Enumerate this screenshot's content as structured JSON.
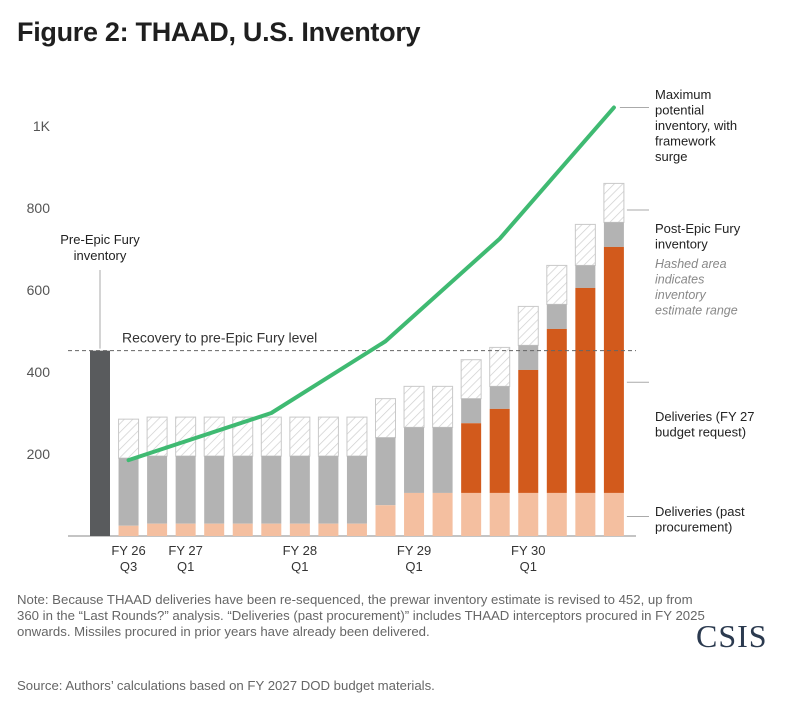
{
  "title": "Figure 2: THAAD, U.S. Inventory",
  "note": "Note: Because THAAD deliveries have been re-sequenced, the prewar inventory estimate is revised to 452, up from 360 in the “Last Rounds?” analysis. “Deliveries (past procurement)” includes THAAD interceptors procured in FY 2025 onwards. Missiles procured in prior years have already been delivered.",
  "source": "Source: Authors’ calculations based on FY 2027 DOD budget materials.",
  "logo": "CSIS",
  "colors": {
    "pre_war": "#595b5d",
    "past": "#f4bfa0",
    "fy27": "#d25a1c",
    "post": "#b3b3b3",
    "line": "#3fba72",
    "hatch_stroke": "#c9c9c9"
  },
  "chart_data": {
    "type": "bar",
    "ylim": [
      0,
      1100
    ],
    "yticks": [
      {
        "v": 200,
        "label": "200"
      },
      {
        "v": 400,
        "label": "400"
      },
      {
        "v": 600,
        "label": "600"
      },
      {
        "v": 800,
        "label": "800"
      },
      {
        "v": 1000,
        "label": "1K"
      }
    ],
    "xticks": [
      {
        "index": 1,
        "line1": "FY 26",
        "line2": "Q3"
      },
      {
        "index": 3,
        "line1": "FY 27",
        "line2": "Q1"
      },
      {
        "index": 7,
        "line1": "FY 28",
        "line2": "Q1"
      },
      {
        "index": 11,
        "line1": "FY 29",
        "line2": "Q1"
      },
      {
        "index": 15,
        "line1": "FY 30",
        "line2": "Q1"
      }
    ],
    "pre_war_inventory": 452,
    "pre_war_label": [
      "Pre-Epic Fury",
      "inventory"
    ],
    "reference_label": "Recovery to pre-Epic Fury level",
    "bars": [
      {
        "past": 25,
        "fy27": 0,
        "post": 190,
        "max": 285
      },
      {
        "past": 30,
        "fy27": 0,
        "post": 195,
        "max": 290
      },
      {
        "past": 30,
        "fy27": 0,
        "post": 195,
        "max": 290
      },
      {
        "past": 30,
        "fy27": 0,
        "post": 195,
        "max": 290
      },
      {
        "past": 30,
        "fy27": 0,
        "post": 195,
        "max": 290
      },
      {
        "past": 30,
        "fy27": 0,
        "post": 195,
        "max": 290
      },
      {
        "past": 30,
        "fy27": 0,
        "post": 195,
        "max": 290
      },
      {
        "past": 30,
        "fy27": 0,
        "post": 195,
        "max": 290
      },
      {
        "past": 30,
        "fy27": 0,
        "post": 195,
        "max": 290
      },
      {
        "past": 75,
        "fy27": 0,
        "post": 240,
        "max": 335
      },
      {
        "past": 105,
        "fy27": 0,
        "post": 265,
        "max": 365
      },
      {
        "past": 105,
        "fy27": 0,
        "post": 265,
        "max": 365
      },
      {
        "past": 105,
        "fy27": 170,
        "post": 335,
        "max": 430
      },
      {
        "past": 105,
        "fy27": 205,
        "post": 365,
        "max": 460
      },
      {
        "past": 105,
        "fy27": 300,
        "post": 465,
        "max": 560
      },
      {
        "past": 105,
        "fy27": 400,
        "post": 565,
        "max": 660
      },
      {
        "past": 105,
        "fy27": 500,
        "post": 660,
        "max": 760
      },
      {
        "past": 105,
        "fy27": 600,
        "post": 765,
        "max": 860
      }
    ],
    "surge_line": [
      {
        "index": 1,
        "value": 185
      },
      {
        "index": 6,
        "value": 300
      },
      {
        "index": 10,
        "value": 475
      },
      {
        "index": 14,
        "value": 725
      },
      {
        "index": 18,
        "value": 1045
      }
    ],
    "legend": {
      "surge": [
        "Maximum",
        "potential",
        "inventory, with",
        "framework",
        "surge"
      ],
      "post": [
        "Post-Epic Fury",
        "inventory"
      ],
      "hatch": [
        "Hashed area",
        "indicates",
        "inventory",
        "estimate range"
      ],
      "fy27": [
        "Deliveries (FY 27",
        "budget request)"
      ],
      "past": [
        "Deliveries (past",
        "procurement)"
      ]
    }
  }
}
